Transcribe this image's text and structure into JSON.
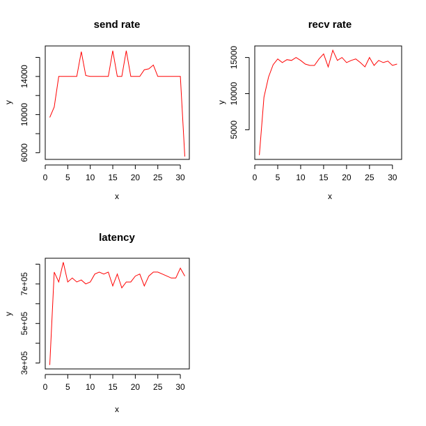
{
  "chart_data": [
    {
      "id": "send",
      "type": "line",
      "title": "send rate",
      "xlabel": "x",
      "ylabel": "y",
      "xlim": [
        0,
        32
      ],
      "ylim": [
        5300,
        17200
      ],
      "xticks": [
        {
          "value": 0,
          "label": "0"
        },
        {
          "value": 5,
          "label": "5"
        },
        {
          "value": 10,
          "label": "10"
        },
        {
          "value": 15,
          "label": "15"
        },
        {
          "value": 20,
          "label": "20"
        },
        {
          "value": 25,
          "label": "25"
        },
        {
          "value": 30,
          "label": "30"
        }
      ],
      "yticks_labeled": [
        {
          "value": 6000,
          "label": "6000"
        },
        {
          "value": 10000,
          "label": "10000"
        },
        {
          "value": 14000,
          "label": "14000"
        }
      ],
      "yticks_minor": [
        8000,
        12000,
        16000
      ],
      "line_color": "#ff0000",
      "x": [
        1,
        2,
        3,
        4,
        5,
        6,
        7,
        8,
        9,
        10,
        11,
        12,
        13,
        14,
        15,
        16,
        17,
        18,
        19,
        20,
        21,
        22,
        23,
        24,
        25,
        26,
        27,
        28,
        29,
        30,
        31
      ],
      "values": [
        9700,
        10800,
        14000,
        14000,
        14000,
        14000,
        14000,
        16600,
        14100,
        14000,
        14000,
        14000,
        14000,
        14000,
        16700,
        14000,
        14000,
        16700,
        14000,
        14000,
        14000,
        14700,
        14800,
        15200,
        14000,
        14000,
        14000,
        14000,
        14000,
        14000,
        5600
      ]
    },
    {
      "id": "recv",
      "type": "line",
      "title": "recv rate",
      "xlabel": "x",
      "ylabel": "y",
      "xlim": [
        0,
        32
      ],
      "ylim": [
        900,
        16600
      ],
      "xticks": [
        {
          "value": 0,
          "label": "0"
        },
        {
          "value": 5,
          "label": "5"
        },
        {
          "value": 10,
          "label": "10"
        },
        {
          "value": 15,
          "label": "15"
        },
        {
          "value": 20,
          "label": "20"
        },
        {
          "value": 25,
          "label": "25"
        },
        {
          "value": 30,
          "label": "30"
        }
      ],
      "yticks_labeled": [
        {
          "value": 5000,
          "label": "5000"
        },
        {
          "value": 10000,
          "label": "10000"
        },
        {
          "value": 15000,
          "label": "15000"
        }
      ],
      "yticks_minor": [],
      "line_color": "#ff0000",
      "x": [
        1,
        2,
        3,
        4,
        5,
        6,
        7,
        8,
        9,
        10,
        11,
        12,
        13,
        14,
        15,
        16,
        17,
        18,
        19,
        20,
        21,
        22,
        23,
        24,
        25,
        26,
        27,
        28,
        29,
        30,
        31
      ],
      "values": [
        1500,
        9500,
        12300,
        14000,
        14800,
        14300,
        14700,
        14600,
        15000,
        14600,
        14100,
        13900,
        13900,
        14800,
        15500,
        13700,
        16000,
        14600,
        15000,
        14300,
        14600,
        14800,
        14300,
        13700,
        15000,
        13900,
        14600,
        14300,
        14500,
        13900,
        14100
      ]
    },
    {
      "id": "latency",
      "type": "line",
      "title": "latency",
      "xlabel": "x",
      "ylabel": "y",
      "xlim": [
        0,
        32
      ],
      "ylim": [
        270000,
        830000
      ],
      "xticks": [
        {
          "value": 0,
          "label": "0"
        },
        {
          "value": 5,
          "label": "5"
        },
        {
          "value": 10,
          "label": "10"
        },
        {
          "value": 15,
          "label": "15"
        },
        {
          "value": 20,
          "label": "20"
        },
        {
          "value": 25,
          "label": "25"
        },
        {
          "value": 30,
          "label": "30"
        }
      ],
      "yticks_labeled": [
        {
          "value": 300000,
          "label": "3e+05"
        },
        {
          "value": 500000,
          "label": "5e+05"
        },
        {
          "value": 700000,
          "label": "7e+05"
        }
      ],
      "yticks_minor": [
        400000,
        600000,
        800000
      ],
      "line_color": "#ff0000",
      "x": [
        1,
        2,
        3,
        4,
        5,
        6,
        7,
        8,
        9,
        10,
        11,
        12,
        13,
        14,
        15,
        16,
        17,
        18,
        19,
        20,
        21,
        22,
        23,
        24,
        25,
        26,
        27,
        28,
        29,
        30,
        31
      ],
      "values": [
        290000,
        760000,
        710000,
        810000,
        710000,
        730000,
        710000,
        720000,
        700000,
        710000,
        750000,
        760000,
        750000,
        760000,
        690000,
        750000,
        680000,
        710000,
        710000,
        740000,
        750000,
        690000,
        740000,
        760000,
        760000,
        750000,
        740000,
        730000,
        730000,
        780000,
        740000
      ]
    }
  ]
}
